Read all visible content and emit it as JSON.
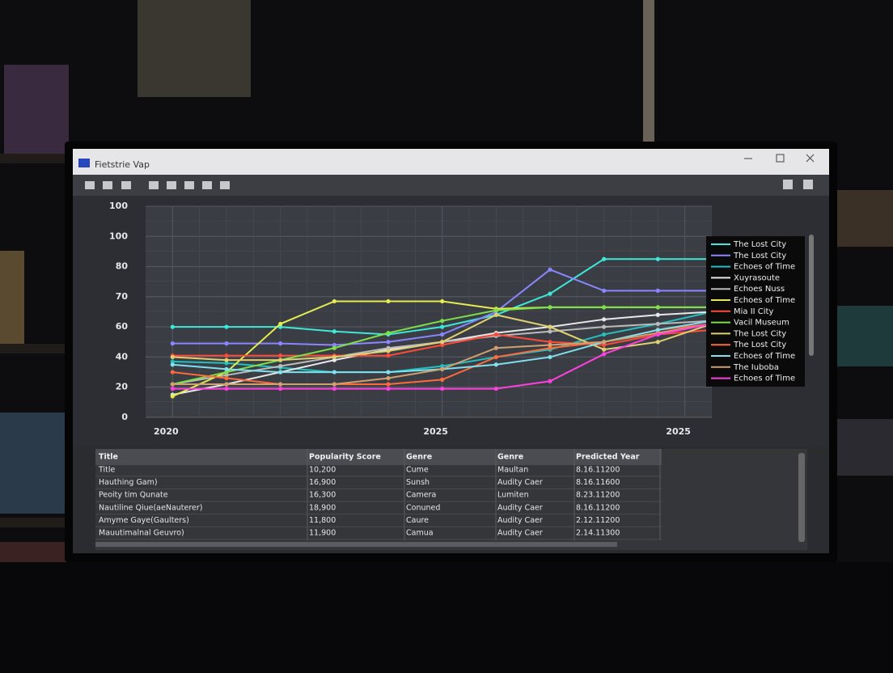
{
  "window": {
    "title": "Fietstrie Vap"
  },
  "chart_data": {
    "type": "line",
    "x": [
      0,
      2,
      4,
      6,
      8,
      10,
      12,
      14,
      16,
      18,
      20
    ],
    "xlim": [
      -1,
      20
    ],
    "xticks": [
      {
        "value": 0,
        "label": "2020"
      },
      {
        "value": 10,
        "label": "2025"
      },
      {
        "value": 19,
        "label": "2025"
      }
    ],
    "ylim": [
      0,
      140
    ],
    "yticks": [
      0,
      20,
      40,
      60,
      {
        "value": 80,
        "label": "70"
      },
      {
        "value": 100,
        "label": "80"
      },
      {
        "value": 120,
        "label": "100"
      },
      {
        "value": 140,
        "label": "100"
      }
    ],
    "grid": true,
    "series": [
      {
        "name": "The Lost City",
        "color": "#3ee8d8",
        "values": [
          60,
          60,
          60,
          57,
          55,
          60,
          68,
          82,
          105,
          105,
          105
        ]
      },
      {
        "name": "The Lost City",
        "color": "#8a86ff",
        "values": [
          49,
          49,
          49,
          48,
          50,
          55,
          70,
          98,
          84,
          84,
          84
        ]
      },
      {
        "name": "Echoes of Time",
        "color": "#22c0c0",
        "values": [
          37,
          36,
          33,
          30,
          30,
          34,
          40,
          45,
          55,
          62,
          70
        ]
      },
      {
        "name": "Xuyrasoute",
        "color": "#e8e8e8",
        "values": [
          15,
          22,
          30,
          38,
          45,
          50,
          56,
          60,
          65,
          68,
          70
        ]
      },
      {
        "name": "Echoes Nuss",
        "color": "#bbbbbb",
        "values": [
          22,
          28,
          34,
          40,
          46,
          50,
          54,
          57,
          60,
          62,
          64
        ]
      },
      {
        "name": "Echoes of Time",
        "color": "#e6ec50",
        "values": [
          14,
          30,
          62,
          77,
          77,
          77,
          72,
          73,
          73,
          73,
          73
        ]
      },
      {
        "name": "Mia II City",
        "color": "#ff4a3a",
        "values": [
          41,
          41,
          41,
          41,
          41,
          48,
          55,
          50,
          48,
          55,
          58
        ]
      },
      {
        "name": "Vacil Museum",
        "color": "#7ce04a",
        "values": [
          22,
          30,
          38,
          46,
          56,
          64,
          71,
          73,
          73,
          73,
          73
        ]
      },
      {
        "name": "The Lost City",
        "color": "#e0d070",
        "values": [
          40,
          38,
          38,
          40,
          44,
          50,
          68,
          60,
          45,
          50,
          62
        ]
      },
      {
        "name": "The Lost City",
        "color": "#ff6a3a",
        "values": [
          30,
          26,
          22,
          22,
          22,
          25,
          40,
          46,
          50,
          58,
          62
        ]
      },
      {
        "name": "Echoes of Time",
        "color": "#80e0f0",
        "values": [
          35,
          32,
          30,
          30,
          30,
          32,
          35,
          40,
          50,
          58,
          64
        ]
      },
      {
        "name": "The Iuboba",
        "color": "#d0a070",
        "values": [
          22,
          22,
          22,
          22,
          26,
          32,
          46,
          48,
          50,
          56,
          62
        ]
      },
      {
        "name": "Echoes of Time",
        "color": "#ff40e0",
        "values": [
          19,
          19,
          19,
          19,
          19,
          19,
          19,
          24,
          42,
          55,
          62
        ]
      }
    ]
  },
  "table": {
    "header": [
      "Title",
      "Popularity Score",
      "Genre",
      "Genre",
      "Predicted Year"
    ],
    "rows": [
      [
        "Title",
        "10,200",
        "Cume",
        "Maultan",
        "8.16.11200"
      ],
      [
        "Hauthing Gam)",
        "16,900",
        "Sunsh",
        "Audity Caer",
        "8.16.11600"
      ],
      [
        "Peoity tim Qunate",
        "16,300",
        "Camera",
        "Lumiten",
        "8.23.11200"
      ],
      [
        "Nautiline Qiue(aeNauterer)",
        "18,900",
        "Conuned",
        "Audity Caer",
        "8.16.11200"
      ],
      [
        "Amyme Gaye(Gaulters)",
        "11,800",
        "Caure",
        "Audity Caer",
        "2.12.11200"
      ],
      [
        "Mauutimalnal Geuvro)",
        "11,900",
        "Camua",
        "Audity Caer",
        "2.14.11300"
      ]
    ]
  }
}
